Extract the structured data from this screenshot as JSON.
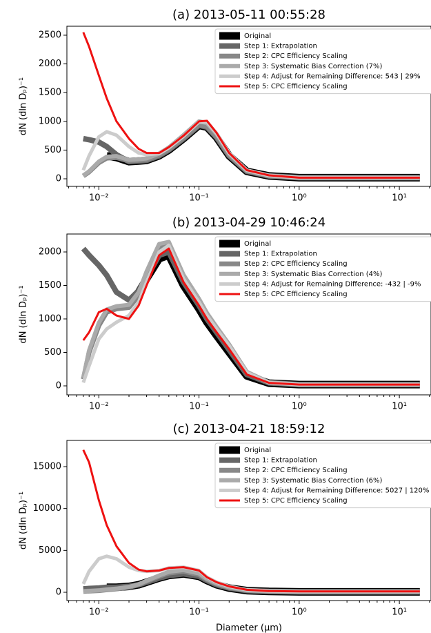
{
  "chart_data": [
    {
      "type": "line",
      "title": "(a) 2013-05-11 00:55:28",
      "ylabel": "dN (dln Dₚ)⁻¹",
      "log_x": true,
      "legend": "upper right",
      "x": [
        0.007,
        0.008,
        0.01,
        0.012,
        0.015,
        0.02,
        0.025,
        0.03,
        0.04,
        0.05,
        0.07,
        0.1,
        0.12,
        0.15,
        0.2,
        0.3,
        0.5,
        1,
        2,
        5,
        10,
        16
      ],
      "xlim": [
        0.0048,
        20.7
      ],
      "xticks": [
        {
          "value": 0.01,
          "label": "10⁻²"
        },
        {
          "value": 0.1,
          "label": "10⁻¹"
        },
        {
          "value": 1,
          "label": "10⁰"
        },
        {
          "value": 10,
          "label": "10¹"
        }
      ],
      "ylim": [
        -132,
        2656
      ],
      "yticks": [
        0,
        500,
        1000,
        1500,
        2000,
        2500
      ],
      "series": [
        {
          "name": "Original",
          "color": "#000000",
          "values": [
            null,
            null,
            null,
            400,
            370,
            300,
            310,
            320,
            400,
            500,
            700,
            930,
            900,
            720,
            400,
            130,
            50,
            20,
            20,
            20,
            20,
            20
          ]
        },
        {
          "name": "Step 1: Extrapolation",
          "color": "#666666",
          "values": [
            700,
            680,
            640,
            560,
            420,
            300,
            310,
            320,
            400,
            500,
            700,
            930,
            900,
            720,
            400,
            130,
            50,
            20,
            20,
            20,
            20,
            20
          ]
        },
        {
          "name": "Step 2: CPC Efficiency Scaling",
          "color": "#888888",
          "values": [
            50,
            120,
            280,
            360,
            370,
            310,
            320,
            330,
            410,
            510,
            710,
            940,
            910,
            730,
            410,
            135,
            50,
            20,
            20,
            20,
            20,
            20
          ]
        },
        {
          "name": "Step 3: Systematic Bias Correction (7%)",
          "color": "#aaaaaa",
          "values": [
            55,
            130,
            300,
            385,
            395,
            330,
            340,
            355,
            440,
            545,
            760,
            1000,
            970,
            780,
            440,
            145,
            55,
            20,
            20,
            20,
            20,
            20
          ]
        },
        {
          "name": "Step 4: Adjust for Remaining Difference: 543 | 29%",
          "color": "#cccccc",
          "values": [
            150,
            400,
            730,
            820,
            760,
            560,
            450,
            420,
            440,
            540,
            740,
            990,
            990,
            790,
            450,
            150,
            58,
            20,
            20,
            20,
            20,
            20
          ]
        },
        {
          "name": "Step 5: CPC Efficiency Scaling",
          "color": "#ee1111",
          "values": [
            2550,
            2300,
            1800,
            1400,
            1000,
            700,
            520,
            450,
            450,
            550,
            750,
            1000,
            1010,
            800,
            450,
            150,
            60,
            20,
            20,
            20,
            20,
            20
          ]
        }
      ]
    },
    {
      "type": "line",
      "title": "(b) 2013-04-29 10:46:24",
      "ylabel": "dN (dln Dₚ)⁻¹",
      "log_x": true,
      "legend": "upper right",
      "x": [
        0.007,
        0.008,
        0.01,
        0.012,
        0.015,
        0.02,
        0.025,
        0.03,
        0.04,
        0.05,
        0.07,
        0.1,
        0.12,
        0.15,
        0.2,
        0.3,
        0.5,
        1,
        2,
        5,
        10,
        16
      ],
      "xlim": [
        0.0048,
        20.7
      ],
      "xticks": [
        {
          "value": 0.01,
          "label": "10⁻²"
        },
        {
          "value": 0.1,
          "label": "10⁻¹"
        },
        {
          "value": 1,
          "label": "10⁰"
        },
        {
          "value": 10,
          "label": "10¹"
        }
      ],
      "ylim": [
        -134,
        2268
      ],
      "yticks": [
        0,
        500,
        1000,
        1500,
        2000
      ],
      "series": [
        {
          "name": "Original",
          "color": "#000000",
          "values": [
            null,
            null,
            null,
            null,
            null,
            1250,
            1400,
            1600,
            1900,
            1950,
            1500,
            1150,
            950,
            750,
            500,
            150,
            40,
            20,
            20,
            20,
            20,
            20
          ]
        },
        {
          "name": "Step 1: Extrapolation",
          "color": "#666666",
          "values": [
            2050,
            1950,
            1800,
            1650,
            1400,
            1280,
            1420,
            1620,
            1950,
            2000,
            1550,
            1200,
            1000,
            800,
            540,
            170,
            45,
            20,
            20,
            20,
            20,
            20
          ]
        },
        {
          "name": "Step 2: CPC Efficiency Scaling",
          "color": "#888888",
          "values": [
            100,
            500,
            900,
            1100,
            1150,
            1170,
            1350,
            1650,
            2050,
            2100,
            1600,
            1250,
            1050,
            850,
            600,
            200,
            50,
            20,
            20,
            20,
            20,
            20
          ]
        },
        {
          "name": "Step 3: Systematic Bias Correction (4%)",
          "color": "#aaaaaa",
          "values": [
            120,
            530,
            940,
            1140,
            1190,
            1210,
            1400,
            1710,
            2120,
            2150,
            1660,
            1300,
            1090,
            880,
            620,
            210,
            52,
            20,
            20,
            20,
            20,
            20
          ]
        },
        {
          "name": "Step 4: Adjust for Remaining Difference: -432 | -9%",
          "color": "#cccccc",
          "values": [
            50,
            300,
            700,
            850,
            950,
            1050,
            1250,
            1550,
            2000,
            2100,
            1600,
            1250,
            1050,
            850,
            600,
            200,
            50,
            20,
            20,
            20,
            20,
            20
          ]
        },
        {
          "name": "Step 5: CPC Efficiency Scaling",
          "color": "#ee1111",
          "values": [
            680,
            800,
            1100,
            1150,
            1050,
            1000,
            1200,
            1500,
            1950,
            2050,
            1550,
            1200,
            1000,
            800,
            550,
            170,
            45,
            20,
            20,
            20,
            20,
            20
          ]
        }
      ]
    },
    {
      "type": "line",
      "title": "(c) 2013-04-21 18:59:12",
      "ylabel": "dN (dln Dₚ)⁻¹",
      "xlabel": "Diameter (μm)",
      "log_x": true,
      "legend": "upper right",
      "x": [
        0.007,
        0.008,
        0.01,
        0.012,
        0.015,
        0.02,
        0.025,
        0.03,
        0.04,
        0.05,
        0.07,
        0.1,
        0.12,
        0.15,
        0.2,
        0.3,
        0.5,
        1,
        2,
        5,
        10,
        16
      ],
      "xlim": [
        0.0048,
        20.7
      ],
      "xticks": [
        {
          "value": 0.01,
          "label": "10⁻²"
        },
        {
          "value": 0.1,
          "label": "10⁻¹"
        },
        {
          "value": 1,
          "label": "10⁰"
        },
        {
          "value": 10,
          "label": "10¹"
        }
      ],
      "ylim": [
        -989,
        18132
      ],
      "yticks": [
        0,
        5000,
        10000,
        15000
      ],
      "series": [
        {
          "name": "Original",
          "color": "#000000",
          "values": [
            null,
            null,
            null,
            600,
            600,
            700,
            900,
            1200,
            1700,
            2000,
            2200,
            1900,
            1400,
            900,
            500,
            200,
            100,
            50,
            50,
            50,
            50,
            50
          ]
        },
        {
          "name": "Step 1: Extrapolation",
          "color": "#666666",
          "values": [
            400,
            450,
            500,
            600,
            600,
            700,
            900,
            1200,
            1700,
            2000,
            2200,
            1900,
            1400,
            900,
            500,
            200,
            100,
            50,
            50,
            50,
            50,
            50
          ]
        },
        {
          "name": "Step 2: CPC Efficiency Scaling",
          "color": "#888888",
          "values": [
            100,
            150,
            200,
            300,
            400,
            600,
            900,
            1300,
            1900,
            2300,
            2500,
            2100,
            1500,
            1000,
            550,
            220,
            110,
            60,
            60,
            60,
            60,
            60
          ]
        },
        {
          "name": "Step 3: Systematic Bias Correction (6%)",
          "color": "#aaaaaa",
          "values": [
            110,
            160,
            220,
            330,
            430,
            650,
            960,
            1380,
            2000,
            2450,
            2650,
            2250,
            1600,
            1060,
            590,
            235,
            115,
            65,
            65,
            65,
            65,
            65
          ]
        },
        {
          "name": "Step 4: Adjust for Remaining Difference: 5027 | 120%",
          "color": "#cccccc",
          "values": [
            1000,
            2500,
            4000,
            4300,
            4000,
            3000,
            2600,
            2500,
            2600,
            2900,
            3000,
            2600,
            1800,
            1200,
            700,
            300,
            150,
            100,
            100,
            100,
            100,
            100
          ]
        },
        {
          "name": "Step 5: CPC Efficiency Scaling",
          "color": "#ee1111",
          "values": [
            17000,
            15500,
            11000,
            8000,
            5500,
            3500,
            2700,
            2500,
            2600,
            2900,
            3000,
            2600,
            1800,
            1200,
            700,
            300,
            150,
            100,
            100,
            100,
            100,
            100
          ]
        }
      ]
    }
  ]
}
